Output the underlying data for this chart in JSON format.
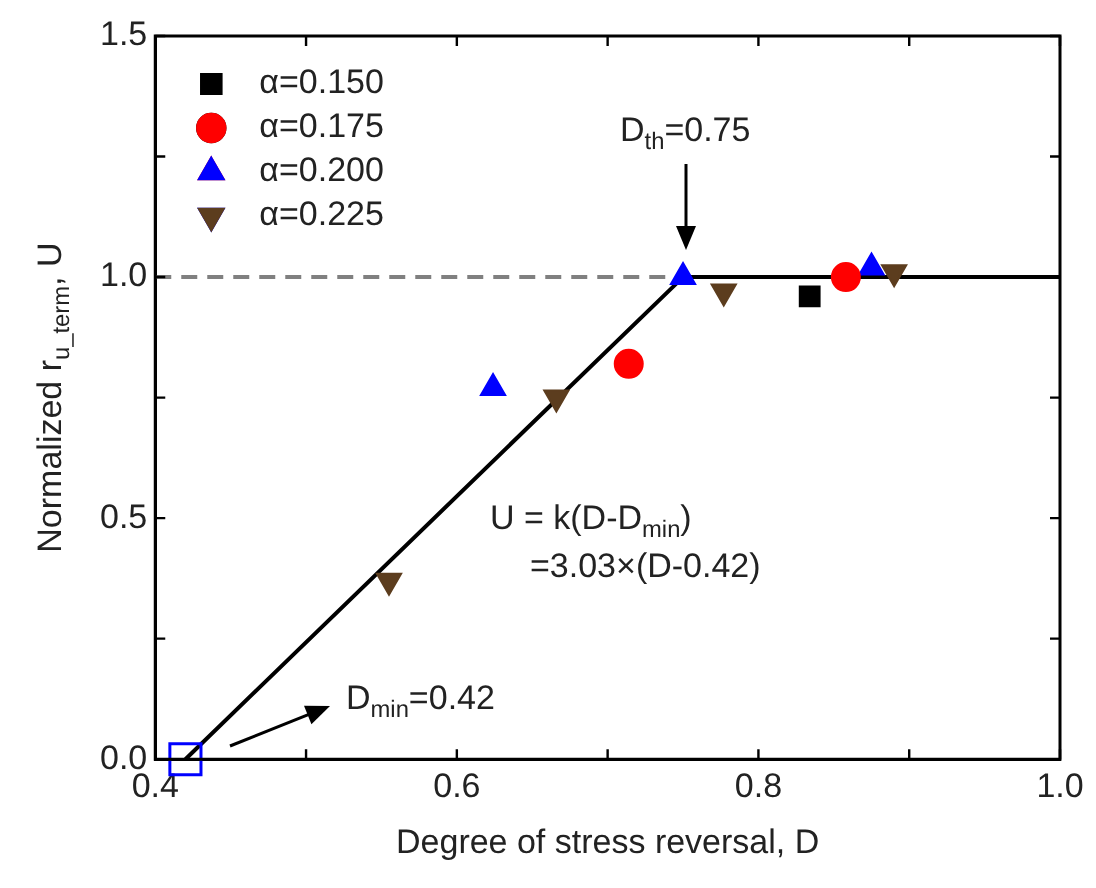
{
  "chart_data": {
    "type": "scatter",
    "xlabel": "Degree of stress reversal, D",
    "ylabel": "Normalized r$_{u_term}$, U",
    "xlim": [
      0.4,
      1.0
    ],
    "xticks": [
      {
        "value": 0.4,
        "label": "0.4"
      },
      {
        "value": 0.5,
        "label": null
      },
      {
        "value": 0.6,
        "label": "0.6"
      },
      {
        "value": 0.7,
        "label": null
      },
      {
        "value": 0.8,
        "label": "0.8"
      },
      {
        "value": 0.9,
        "label": null
      },
      {
        "value": 1.0,
        "label": "1.0"
      }
    ],
    "ylim": [
      0,
      1.5
    ],
    "yticks": [
      {
        "value": 0,
        "label": "0.0"
      },
      {
        "value": 0.25,
        "label": null
      },
      {
        "value": 0.5,
        "label": "0.5"
      },
      {
        "value": 0.75,
        "label": null
      },
      {
        "value": 1.0,
        "label": "1.0"
      },
      {
        "value": 1.25,
        "label": null
      },
      {
        "value": 1.5,
        "label": "1.5"
      }
    ],
    "series": [
      {
        "name": "α=0.150",
        "color": "#000000",
        "marker": "square",
        "x": [
          0.834
        ],
        "values": [
          0.96
        ]
      },
      {
        "name": "α=0.175",
        "color": "#ff0000",
        "marker": "circle",
        "x": [
          0.714,
          0.858
        ],
        "values": [
          0.82,
          1.0
        ]
      },
      {
        "name": "α=0.200",
        "color": "#0000ff",
        "marker": "triangle",
        "x": [
          0.624,
          0.75,
          0.875
        ],
        "values": [
          0.77,
          1.0,
          1.02
        ]
      },
      {
        "name": "α=0.225",
        "color": "#5c3d1e",
        "marker": "triangle-down",
        "x": [
          0.555,
          0.666,
          0.777,
          0.89
        ],
        "values": [
          0.37,
          0.75,
          0.97,
          1.01
        ]
      },
      {
        "type": "line",
        "color": "#000000",
        "marker": "none",
        "x": [
          0.42,
          0.75,
          1.0
        ],
        "values": [
          0,
          1.0,
          1.0
        ]
      },
      {
        "color": "#0000ff",
        "marker": "square",
        "x": [
          0.42
        ],
        "values": [
          0
        ]
      }
    ],
    "ref_lines": [
      {
        "axis": "y",
        "value": 1.0,
        "color": "#808080",
        "line_style": "dashed"
      }
    ],
    "annotations": [
      "D$_{th}$=0.75",
      "D$_{min}$=0.42",
      "U = k(D-D$_{min}$)",
      "=3.03×(D-0.42)"
    ],
    "legend": "top left",
    "grid": false
  }
}
